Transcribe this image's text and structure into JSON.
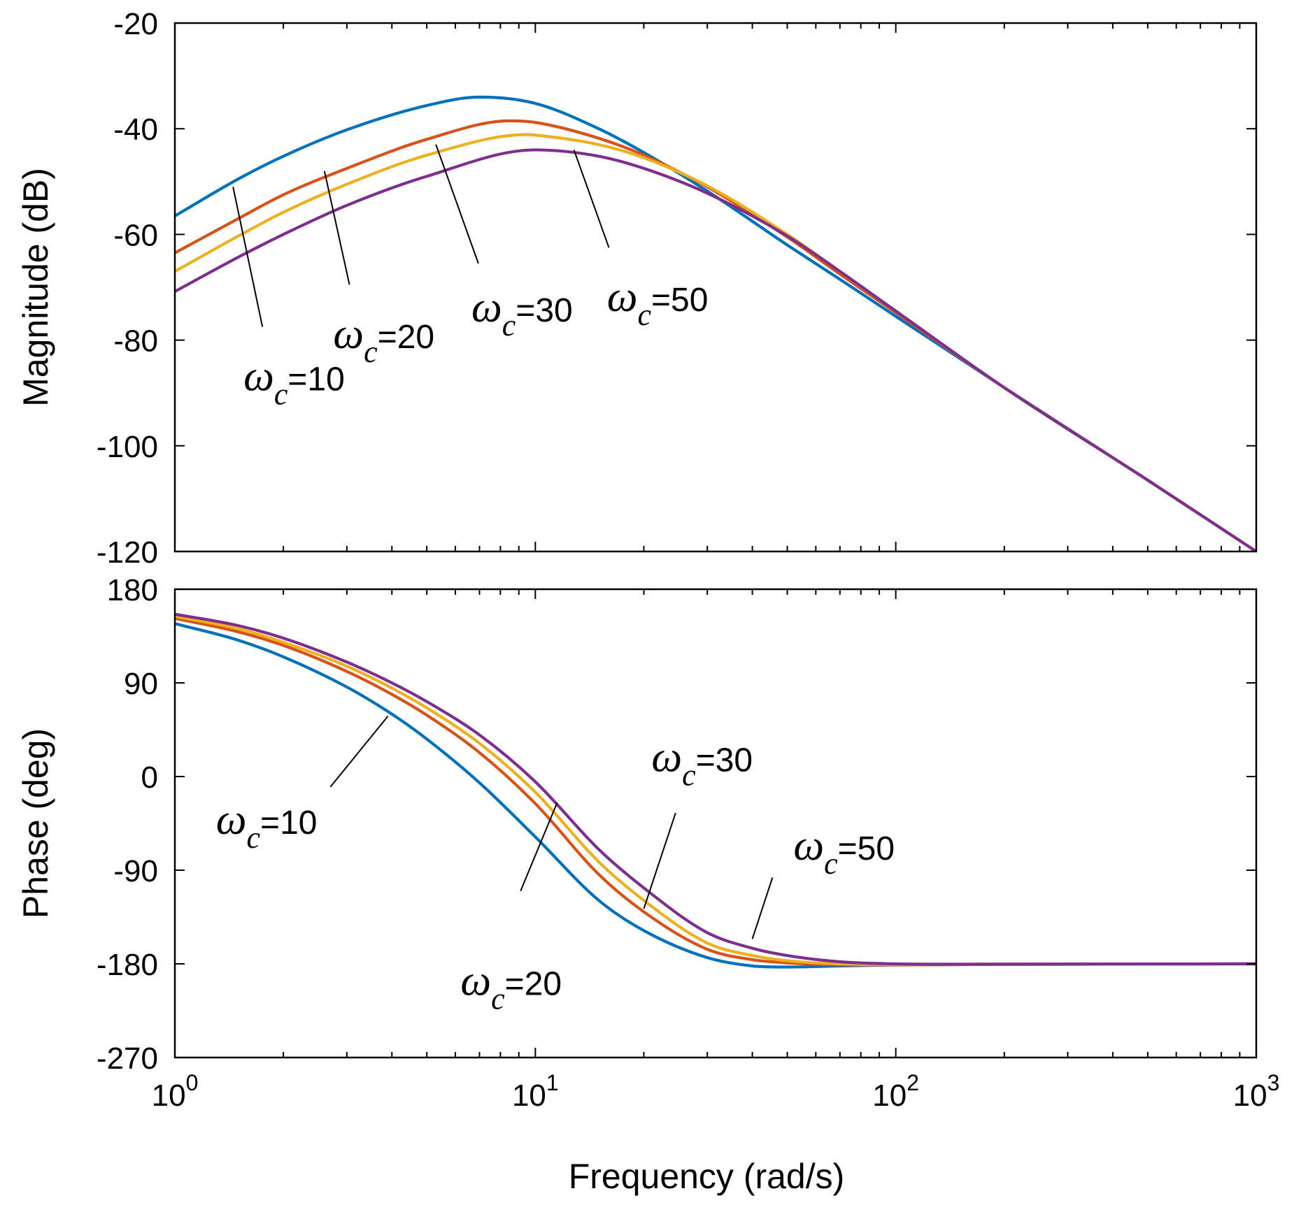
{
  "chart_data": {
    "type": "line",
    "title": "",
    "xlabel": "Frequency  (rad/s)",
    "xscale": "log",
    "xlim": [
      1,
      1000
    ],
    "x_ticks": [
      {
        "value": 1,
        "base": "10",
        "exp": "0"
      },
      {
        "value": 10,
        "base": "10",
        "exp": "1"
      },
      {
        "value": 100,
        "base": "10",
        "exp": "2"
      },
      {
        "value": 1000,
        "base": "10",
        "exp": "3"
      }
    ],
    "series_colors": [
      "#0072BD",
      "#D95319",
      "#EDB120",
      "#7E2F8E"
    ],
    "series_names": [
      "ωc=10",
      "ωc=20",
      "ωc=30",
      "ωc=50"
    ],
    "panels": [
      {
        "name": "magnitude",
        "ylabel": "Magnitude (dB)",
        "ylim": [
          -120,
          -20
        ],
        "yticks": [
          "-20",
          "-40",
          "-60",
          "-80",
          "-100",
          "-120"
        ],
        "ytick_values": [
          -20,
          -40,
          -60,
          -80,
          -100,
          -120
        ],
        "series": [
          {
            "name": "ωc=10",
            "color": "#0072BD",
            "x": [
              1,
              1.5,
              2,
              3,
              5,
              7,
              10,
              15,
              20,
              30,
              50,
              70,
              100,
              200,
              500,
              1000
            ],
            "y": [
              -56.5,
              -49.5,
              -45.2,
              -40.2,
              -35.6,
              -34.0,
              -35.2,
              -40.0,
              -44.5,
              -51.8,
              -62,
              -68.5,
              -75.5,
              -89,
              -106.5,
              -120
            ]
          },
          {
            "name": "ωc=20",
            "color": "#D95319",
            "x": [
              1,
              1.5,
              2,
              3,
              5,
              8.5,
              10,
              15,
              20,
              30,
              50,
              70,
              100,
              200,
              500,
              1000
            ],
            "y": [
              -63.5,
              -57.0,
              -52.5,
              -47.5,
              -42.0,
              -38.5,
              -38.8,
              -41.8,
              -45.0,
              -51.0,
              -60.5,
              -67.5,
              -74.8,
              -89,
              -106.5,
              -120
            ]
          },
          {
            "name": "ωc=30",
            "color": "#EDB120",
            "x": [
              1,
              1.5,
              2,
              3,
              5,
              9.5,
              10,
              15,
              20,
              30,
              50,
              70,
              100,
              200,
              500,
              1000
            ],
            "y": [
              -67.0,
              -60.3,
              -55.8,
              -50.5,
              -45.0,
              -41.1,
              -41.2,
              -43.0,
              -45.5,
              -50.8,
              -60.0,
              -67.0,
              -74.5,
              -89,
              -106.5,
              -120
            ]
          },
          {
            "name": "ωc=50",
            "color": "#7E2F8E",
            "x": [
              1,
              1.5,
              2,
              3,
              5,
              10,
              15,
              20,
              30,
              50,
              70,
              100,
              200,
              500,
              1000
            ],
            "y": [
              -70.8,
              -64.3,
              -60.0,
              -54.5,
              -49.0,
              -44.0,
              -45.2,
              -47.5,
              -52.2,
              -60.3,
              -67.0,
              -74.5,
              -89,
              -106.5,
              -120
            ]
          }
        ],
        "annotations": [
          {
            "text": "ω",
            "sub": "c",
            "val": "=10",
            "x": 1.55,
            "y": -89.5,
            "lx1": 1.75,
            "ly1": -77.5,
            "lx2": 1.45,
            "ly2": -51.0
          },
          {
            "text": "ω",
            "sub": "c",
            "val": "=20",
            "x": 2.75,
            "y": -81.5,
            "lx1": 3.05,
            "ly1": -69.5,
            "lx2": 2.6,
            "ly2": -48.0
          },
          {
            "text": "ω",
            "sub": "c",
            "val": "=30",
            "x": 6.65,
            "y": -76.5,
            "lx1": 6.95,
            "ly1": -65.5,
            "lx2": 5.3,
            "ly2": -43.0
          },
          {
            "text": "ω",
            "sub": "c",
            "val": "=50",
            "x": 15.8,
            "y": -74.5,
            "lx1": 16.0,
            "ly1": -62.5,
            "lx2": 12.8,
            "ly2": -44.0
          }
        ]
      },
      {
        "name": "phase",
        "ylabel": "Phase (deg)",
        "ylim": [
          -270,
          180
        ],
        "yticks": [
          "180",
          "90",
          "0",
          "-90",
          "-180",
          "-270"
        ],
        "ytick_values": [
          180,
          90,
          0,
          -90,
          -180,
          -270
        ],
        "series": [
          {
            "name": "ωc=10",
            "color": "#0072BD",
            "x": [
              1,
              1.5,
              2,
              3,
              4,
              5,
              7,
              10,
              15,
              20,
              30,
              40,
              50,
              70,
              100,
              200,
              500,
              1000
            ],
            "y": [
              147,
              131,
              115,
              86,
              60,
              36,
              -6,
              -58,
              -119,
              -148,
              -174,
              -182,
              -183,
              -182,
              -181,
              -180.5,
              -180.2,
              -180
            ]
          },
          {
            "name": "ωc=20",
            "color": "#D95319",
            "x": [
              1,
              1.5,
              2,
              3,
              4,
              5,
              7,
              10,
              15,
              20,
              30,
              40,
              50,
              70,
              100,
              200,
              500,
              1000
            ],
            "y": [
              152,
              139,
              126,
              101,
              79,
              59,
              23,
              -26,
              -94,
              -130,
              -166,
              -176,
              -179,
              -181,
              -181,
              -180.5,
              -180.2,
              -180
            ]
          },
          {
            "name": "ωc=30",
            "color": "#EDB120",
            "x": [
              1,
              1.5,
              2,
              3,
              4,
              5,
              7,
              10,
              15,
              20,
              30,
              40,
              50,
              70,
              100,
              200,
              500,
              1000
            ],
            "y": [
              154,
              142,
              129,
              106,
              85,
              66,
              32,
              -15,
              -82,
              -119,
              -160,
              -172,
              -177,
              -180,
              -180.5,
              -180.3,
              -180.1,
              -180
            ]
          },
          {
            "name": "ωc=50",
            "color": "#7E2F8E",
            "x": [
              1,
              1.5,
              2,
              3,
              4,
              5,
              7,
              10,
              15,
              20,
              30,
              40,
              50,
              70,
              100,
              200,
              500,
              1000
            ],
            "y": [
              156,
              145,
              133,
              110,
              90,
              72,
              40,
              -5,
              -70,
              -107,
              -150,
              -165,
              -172,
              -178,
              -180,
              -180.2,
              -180.1,
              -180
            ]
          }
        ],
        "annotations": [
          {
            "text": "ω",
            "sub": "c",
            "val": "=10",
            "x": 1.3,
            "y": -55,
            "lx1": 2.7,
            "ly1": -10,
            "lx2": 3.9,
            "ly2": 58
          },
          {
            "text": "ω",
            "sub": "c",
            "val": "=20",
            "x": 6.2,
            "y": -210,
            "lx1": 9.1,
            "ly1": -110,
            "lx2": 11.5,
            "ly2": -25
          },
          {
            "text": "ω",
            "sub": "c",
            "val": "=30",
            "x": 21,
            "y": 5,
            "lx1": 20.0,
            "ly1": -127,
            "lx2": 24.5,
            "ly2": -35
          },
          {
            "text": "ω",
            "sub": "c",
            "val": "=50",
            "x": 52,
            "y": -80,
            "lx1": 40,
            "ly1": -156,
            "lx2": 45.5,
            "ly2": -97
          }
        ]
      }
    ]
  }
}
